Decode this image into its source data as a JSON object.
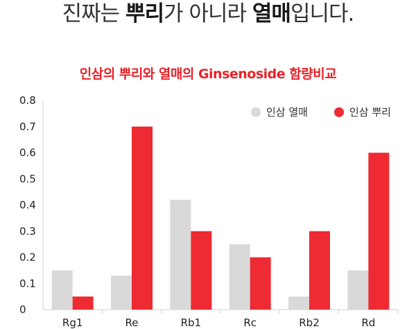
{
  "headline": {
    "part1": "진짜는 ",
    "part2": "뿌리",
    "part3": "가 아니라 ",
    "part4": "열매",
    "part5": "입니다."
  },
  "colors": {
    "accent": "#e8232a",
    "fruit": "#d9d9d9",
    "root": "#ee2a33",
    "grid": "#cccccc",
    "headline": "#333333"
  },
  "chart_data": {
    "type": "bar",
    "title": "인삼의 뿌리와 열매의 Ginsenoside 함량비교",
    "xlabel": "",
    "ylabel": "",
    "categories": [
      "Rg1",
      "Re",
      "Rb1",
      "Rc",
      "Rb2",
      "Rd"
    ],
    "series": [
      {
        "name": "인삼 열매",
        "color": "#d9d9d9",
        "values": [
          0.15,
          0.13,
          0.42,
          0.25,
          0.05,
          0.15
        ]
      },
      {
        "name": "인삼 뿌리",
        "color": "#ee2a33",
        "values": [
          0.05,
          0.7,
          0.3,
          0.2,
          0.3,
          0.6
        ]
      }
    ],
    "ylim": [
      0,
      0.8
    ],
    "yticks": [
      "0",
      "0.1",
      "0.2",
      "0.3",
      "0.4",
      "0.5",
      "0.6",
      "0.7",
      "0.8"
    ],
    "grid": false,
    "legend_position": "top-right"
  }
}
